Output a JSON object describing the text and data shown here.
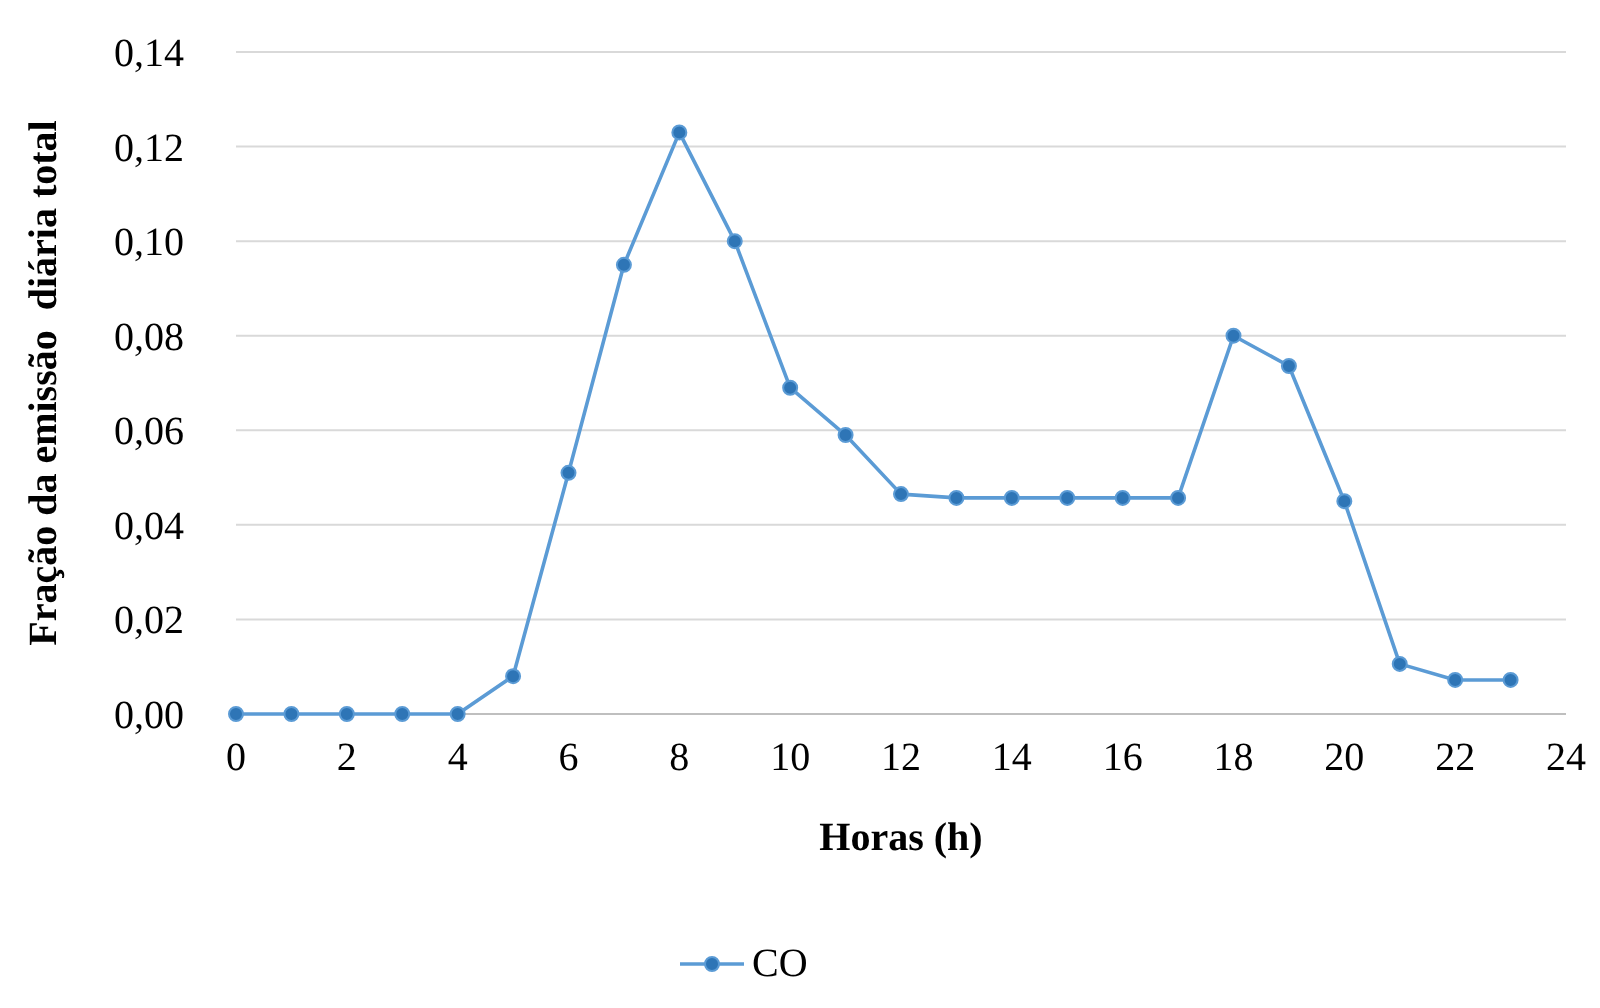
{
  "chart_data": {
    "type": "line",
    "xlabel": "Horas (h)",
    "ylabel": "Fração da emissão  diária total",
    "x": [
      0,
      1,
      2,
      3,
      4,
      5,
      6,
      7,
      8,
      9,
      10,
      11,
      12,
      13,
      14,
      15,
      16,
      17,
      18,
      19,
      20,
      21,
      22,
      23
    ],
    "series": [
      {
        "name": "CO",
        "color": "#5b9bd5",
        "values": [
          0,
          0,
          0,
          0,
          0,
          0.008,
          0.051,
          0.095,
          0.123,
          0.1,
          0.069,
          0.059,
          0.0465,
          0.0457,
          0.0457,
          0.0457,
          0.0457,
          0.0457,
          0.08,
          0.0736,
          0.045,
          0.0106,
          0.0072,
          0.0072
        ]
      }
    ],
    "xlim": [
      0,
      24
    ],
    "xticks": [
      0,
      2,
      4,
      6,
      8,
      10,
      12,
      14,
      16,
      18,
      20,
      22,
      24
    ],
    "ylim": [
      0,
      0.14
    ],
    "yticks": [
      {
        "value": 0,
        "label": "0,00"
      },
      {
        "value": 0.02,
        "label": "0,02"
      },
      {
        "value": 0.04,
        "label": "0,04"
      },
      {
        "value": 0.06,
        "label": "0,06"
      },
      {
        "value": 0.08,
        "label": "0,08"
      },
      {
        "value": 0.1,
        "label": "0,10"
      },
      {
        "value": 0.12,
        "label": "0,12"
      },
      {
        "value": 0.14,
        "label": "0,14"
      }
    ],
    "grid": "y",
    "legend": "bottom",
    "marker": "circle",
    "line_style": "solid"
  }
}
